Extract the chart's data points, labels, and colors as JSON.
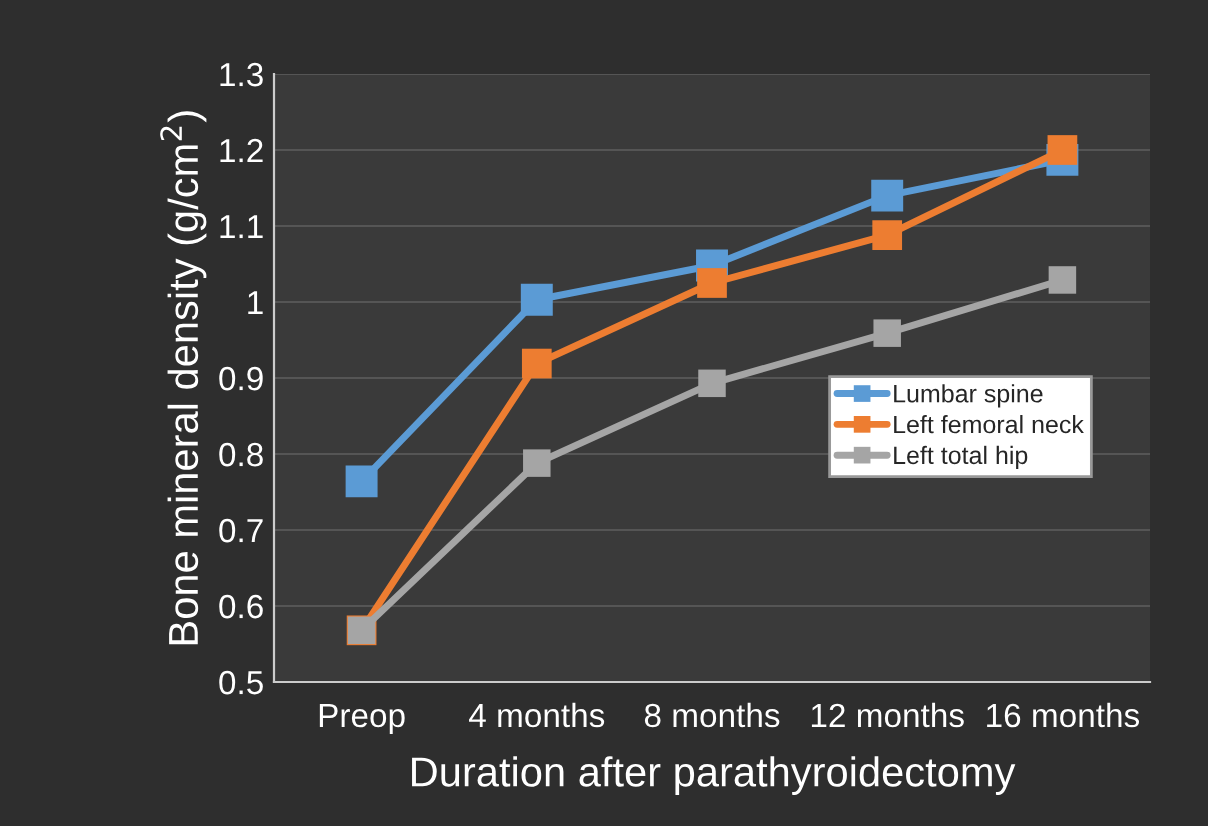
{
  "chart_data": {
    "type": "line",
    "xlabel": "Duration after parathyroidectomy",
    "ylabel": "Bone mineral density (g/cm$^{2}$)",
    "categories": [
      "Preop",
      "4 months",
      "8 months",
      "12 months",
      "16 months"
    ],
    "series": [
      {
        "name": "Lumbar spine",
        "color": "#5b9bd5",
        "values": [
          0.764,
          1.003,
          1.048,
          1.14,
          1.187
        ]
      },
      {
        "name": "Left femoral neck",
        "color": "#ed7d31",
        "values": [
          0.568,
          0.919,
          1.025,
          1.088,
          1.2
        ]
      },
      {
        "name": "Left total hip",
        "color": "#a5a5a5",
        "values": [
          0.568,
          0.788,
          0.893,
          0.959,
          1.029
        ]
      }
    ],
    "ylim": [
      0.5,
      1.3
    ],
    "yticks": [
      0.5,
      0.6,
      0.7,
      0.8,
      0.9,
      1,
      1.1,
      1.2,
      1.3
    ],
    "grid": "y",
    "legend": "right",
    "marker": "square",
    "line_style": "solid"
  }
}
